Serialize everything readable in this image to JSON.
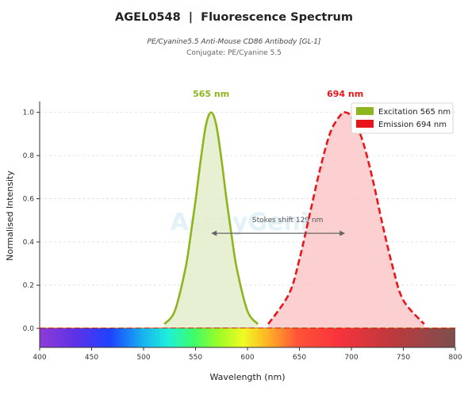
{
  "header": {
    "title": "AGEL0548  |  Fluorescence Spectrum",
    "subtitle": "PE/Cyanine5.5 Anti-Mouse CD86 Antibody [GL-1]",
    "conjugate": "Conjugate: PE/Cyanine 5.5"
  },
  "watermark": "AssayGenie",
  "chart_data": {
    "type": "area",
    "xlabel": "Wavelength (nm)",
    "ylabel": "Normalised Intensity",
    "xlim": [
      400,
      800
    ],
    "ylim": [
      0,
      1.05
    ],
    "x_ticks": [
      "400",
      "450",
      "500",
      "550",
      "600",
      "650",
      "700",
      "750",
      "800"
    ],
    "y_ticks": [
      "0.0",
      "0.2",
      "0.4",
      "0.6",
      "0.8",
      "1.0"
    ],
    "grid": "horizontal-dashed",
    "legend_position": "top-right",
    "series": [
      {
        "name": "Excitation  565 nm",
        "peak": 565,
        "peak_label": "565 nm",
        "line_style": "solid",
        "color": "#8db51d",
        "fill": "#e4edcc",
        "x": [
          520,
          530,
          540,
          545,
          550,
          555,
          560,
          565,
          570,
          575,
          580,
          585,
          590,
          600,
          610
        ],
        "values": [
          0.02,
          0.08,
          0.27,
          0.42,
          0.59,
          0.78,
          0.94,
          1.0,
          0.94,
          0.78,
          0.59,
          0.42,
          0.27,
          0.08,
          0.02
        ]
      },
      {
        "name": "Emission  694 nm",
        "peak": 694,
        "peak_label": "694 nm",
        "line_style": "dashed",
        "color": "#e8151a",
        "fill": "#fcc8c8",
        "x": [
          620,
          640,
          650,
          660,
          670,
          680,
          690,
          694,
          700,
          710,
          720,
          730,
          740,
          750,
          770
        ],
        "values": [
          0.02,
          0.16,
          0.32,
          0.53,
          0.74,
          0.91,
          0.99,
          1.0,
          0.98,
          0.88,
          0.7,
          0.48,
          0.28,
          0.13,
          0.02
        ]
      }
    ],
    "annotation": {
      "text": "Stokes shift  129 nm",
      "from": 565,
      "to": 694,
      "y": 0.44
    },
    "spectrum_bar": true
  }
}
